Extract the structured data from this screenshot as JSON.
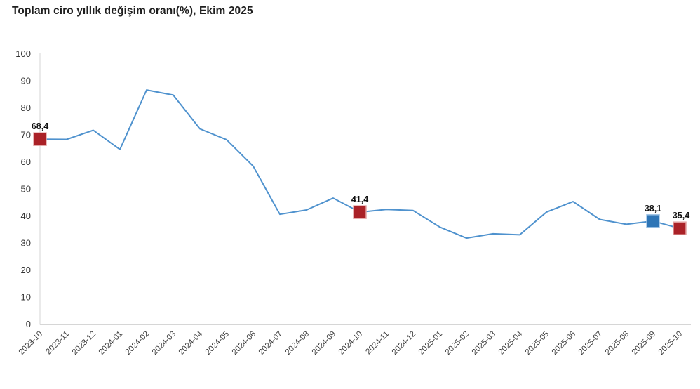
{
  "chart_data": {
    "type": "line",
    "title": "Toplam ciro yıllık değişim oranı(%), Ekim 2025",
    "xlabel": "",
    "ylabel": "",
    "ylim": [
      0,
      100
    ],
    "ytick_step": 10,
    "grid": false,
    "legend": false,
    "x": [
      "2023-10",
      "2023-11",
      "2023-12",
      "2024-01",
      "2024-02",
      "2024-03",
      "2024-04",
      "2024-05",
      "2024-06",
      "2024-07",
      "2024-08",
      "2024-09",
      "2024-10",
      "2024-11",
      "2024-12",
      "2025-01",
      "2025-02",
      "2025-03",
      "2025-04",
      "2025-05",
      "2025-06",
      "2025-07",
      "2025-08",
      "2025-09",
      "2025-10"
    ],
    "series": [
      {
        "name": "Toplam ciro yıllık değişim oranı (%)",
        "values": [
          68.4,
          68.3,
          71.7,
          64.6,
          86.6,
          84.7,
          72.2,
          68.2,
          58.4,
          40.6,
          42.2,
          46.6,
          41.4,
          42.4,
          42.0,
          35.9,
          31.8,
          33.4,
          33.0,
          41.4,
          45.3,
          38.7,
          36.9,
          38.1,
          35.4
        ]
      }
    ],
    "markers": [
      {
        "month": "2023-10",
        "index": 0,
        "value": 68.4,
        "label": "68,4",
        "fill": "#aa2127",
        "stroke": "#e2a1a1"
      },
      {
        "month": "2024-10",
        "index": 12,
        "value": 41.4,
        "label": "41,4",
        "fill": "#aa2127",
        "stroke": "#e2a1a1"
      },
      {
        "month": "2025-09",
        "index": 23,
        "value": 38.1,
        "label": "38,1",
        "fill": "#2e75b6",
        "stroke": "#9cc2e5"
      },
      {
        "month": "2025-10",
        "index": 24,
        "value": 35.4,
        "label": "35,4",
        "fill": "#aa2127",
        "stroke": "#e2a1a1"
      }
    ],
    "line_color": "#4f92ce",
    "axis_color": "#d6d6d6",
    "tick_label_color": "#333333",
    "point_label_color": "#111111",
    "title_color": "#1f1f1f"
  }
}
